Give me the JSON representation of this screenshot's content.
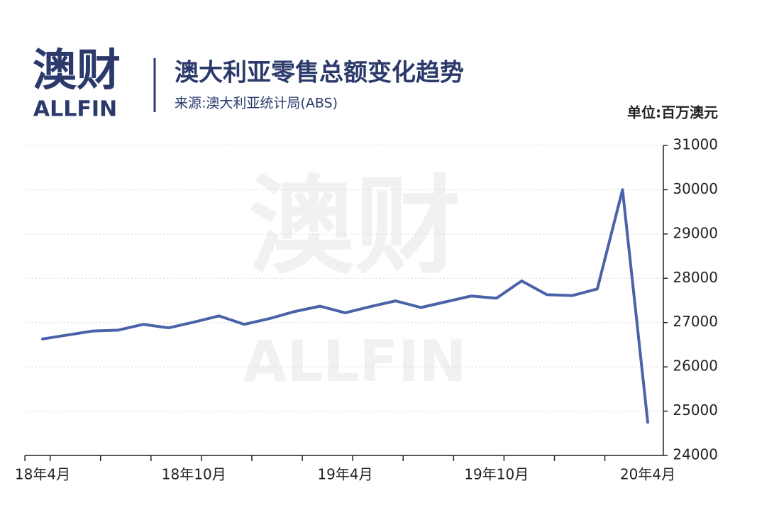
{
  "logo": {
    "cn": "澳财",
    "en": "ALLFIN"
  },
  "chart_data": {
    "type": "line",
    "title": "澳大利亚零售总额变化趋势",
    "subtitle": "来源:澳大利亚统计局(ABS)",
    "unit_label": "单位:百万澳元",
    "categories": [
      "18年4月",
      null,
      null,
      null,
      null,
      null,
      "18年10月",
      null,
      null,
      null,
      null,
      null,
      "19年4月",
      null,
      null,
      null,
      null,
      null,
      "19年10月",
      null,
      null,
      null,
      null,
      null,
      "20年4月"
    ],
    "series": [
      {
        "name": "零售总额",
        "color": "#4a62a8",
        "values": [
          26630,
          26720,
          26810,
          26830,
          26960,
          26880,
          27010,
          27150,
          26960,
          27090,
          27250,
          27370,
          27220,
          27360,
          27490,
          27340,
          27470,
          27600,
          27550,
          27940,
          27630,
          27610,
          27760,
          30000,
          24750
        ]
      }
    ],
    "ylim": [
      24000,
      31000
    ],
    "yticks": [
      24000,
      25000,
      26000,
      27000,
      28000,
      29000,
      30000,
      31000
    ],
    "grid": true
  }
}
